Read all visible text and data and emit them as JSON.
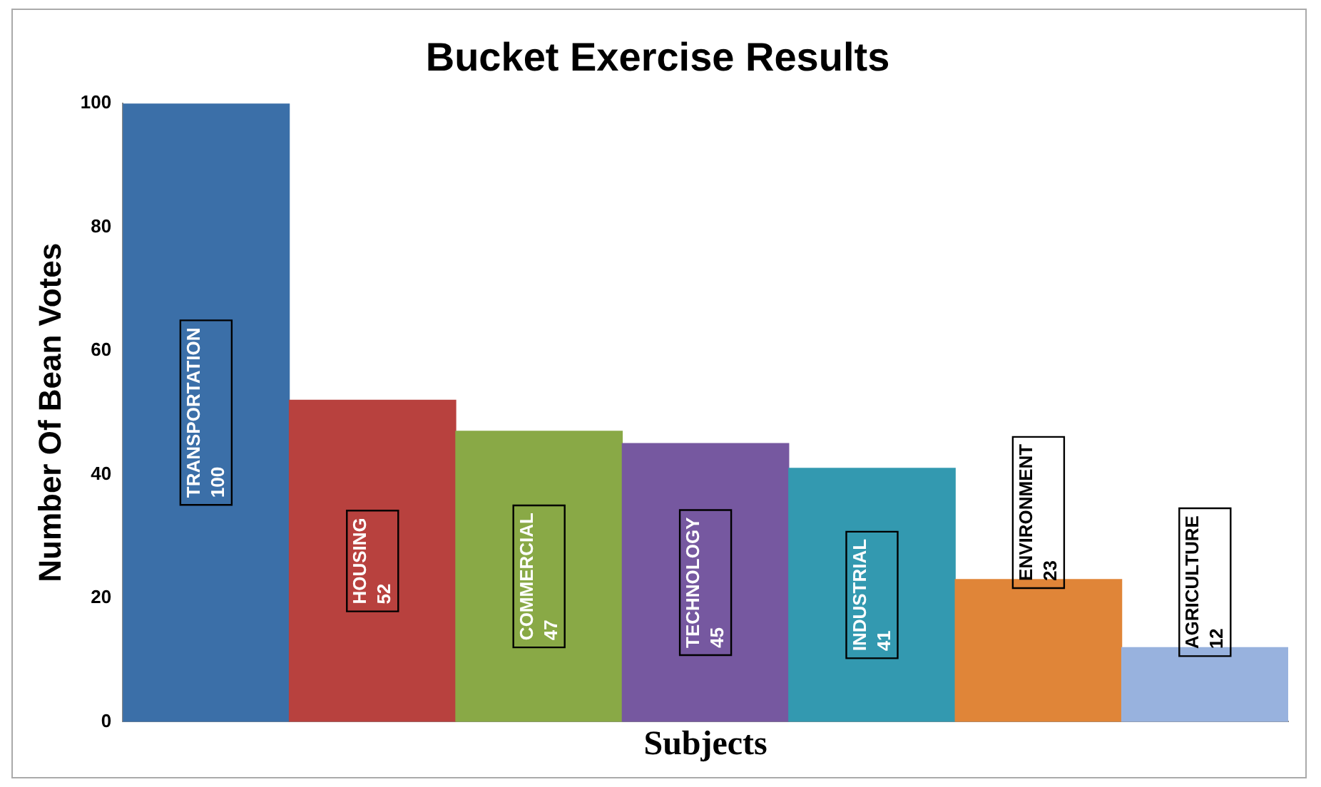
{
  "chart_data": {
    "type": "bar",
    "title": "Bucket Exercise Results",
    "xlabel": "Subjects",
    "ylabel": "Number Of Bean Votes",
    "categories": [
      "TRANSPORTATION",
      "HOUSING",
      "COMMERCIAL",
      "TECHNOLOGY",
      "INDUSTRIAL",
      "ENVIRONMENT",
      "AGRICULTURE"
    ],
    "values": [
      100,
      52,
      47,
      45,
      41,
      23,
      12
    ],
    "colors": [
      "#3b6fa8",
      "#b8413e",
      "#89a946",
      "#7658a0",
      "#3399b0",
      "#e08538",
      "#98b2de"
    ],
    "ylim": [
      0,
      100
    ],
    "yticks": [
      0,
      20,
      40,
      60,
      80,
      100
    ],
    "grid": false,
    "legend": false,
    "data_labels": true
  }
}
